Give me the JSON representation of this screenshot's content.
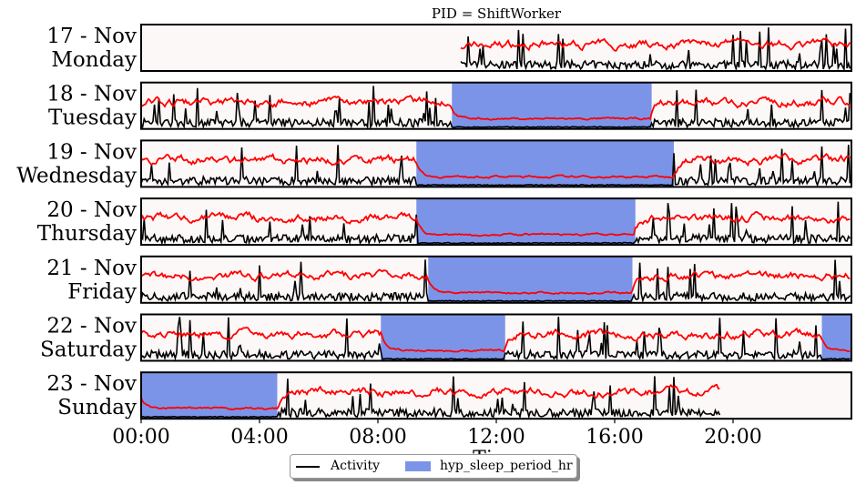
{
  "chart_data": {
    "type": "line",
    "title": "PID = ShiftWorker",
    "xlabel": "Ti",
    "x_ticks": [
      "00:00",
      "04:00",
      "08:00",
      "12:00",
      "16:00",
      "20:00"
    ],
    "x_range_hours": [
      0,
      24
    ],
    "grid": false,
    "legend_position": "bottom-center",
    "legend": {
      "activity_label": "Activity",
      "sleep_label": "hyp_sleep_period_hr"
    },
    "colors": {
      "activity": "#000000",
      "red_series": "#ff0000",
      "sleep_fill": "#7b94e8",
      "panel_bg": "#fdf8f8"
    },
    "days": [
      {
        "date": "17 - Nov",
        "weekday": "Monday",
        "data_start_hr": 10.8,
        "data_end_hr": 24.0,
        "sleep_periods": []
      },
      {
        "date": "18 - Nov",
        "weekday": "Tuesday",
        "data_start_hr": 0.0,
        "data_end_hr": 24.0,
        "sleep_periods": [
          [
            10.5,
            17.25
          ]
        ]
      },
      {
        "date": "19 - Nov",
        "weekday": "Wednesday",
        "data_start_hr": 0.0,
        "data_end_hr": 24.0,
        "sleep_periods": [
          [
            9.3,
            18.0
          ]
        ]
      },
      {
        "date": "20 - Nov",
        "weekday": "Thursday",
        "data_start_hr": 0.0,
        "data_end_hr": 24.0,
        "sleep_periods": [
          [
            9.3,
            16.7
          ]
        ]
      },
      {
        "date": "21 - Nov",
        "weekday": "Friday",
        "data_start_hr": 0.0,
        "data_end_hr": 24.0,
        "sleep_periods": [
          [
            9.7,
            16.6
          ]
        ]
      },
      {
        "date": "22 - Nov",
        "weekday": "Saturday",
        "data_start_hr": 0.0,
        "data_end_hr": 24.0,
        "sleep_periods": [
          [
            8.1,
            12.3
          ],
          [
            23.0,
            24.0
          ]
        ]
      },
      {
        "date": "23 - Nov",
        "weekday": "Sunday",
        "data_start_hr": 0.0,
        "data_end_hr": 19.6,
        "sleep_periods": [
          [
            0.0,
            4.6
          ]
        ]
      }
    ]
  }
}
